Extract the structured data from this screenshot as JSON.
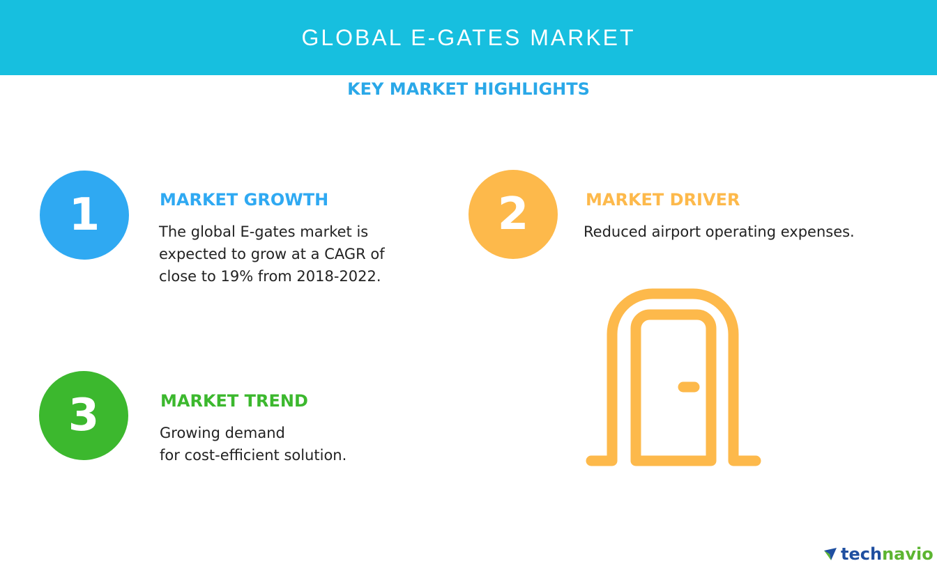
{
  "header": {
    "title": "GLOBAL E-GATES MARKET",
    "subtitle": "KEY MARKET HIGHLIGHTS"
  },
  "highlights": [
    {
      "number": "1",
      "heading": "MARKET GROWTH",
      "text": [
        "The global E-gates market is",
        "expected to grow at a CAGR of",
        "close to 19% from 2018-2022."
      ],
      "color": "#2fa9f2"
    },
    {
      "number": "2",
      "heading": "MARKET DRIVER",
      "text": [
        "Reduced airport operating expenses."
      ],
      "color": "#fdb94b"
    },
    {
      "number": "3",
      "heading": "MARKET TREND",
      "text": [
        "Growing demand",
        "for cost-efficient solution."
      ],
      "color": "#3cb82e"
    }
  ],
  "illustration": {
    "icon": "gate-door-icon",
    "color": "#fdb94b"
  },
  "logo": {
    "part1": "tech",
    "part2": "navio",
    "color1": "#1f4fa0",
    "color2": "#5cb531"
  }
}
